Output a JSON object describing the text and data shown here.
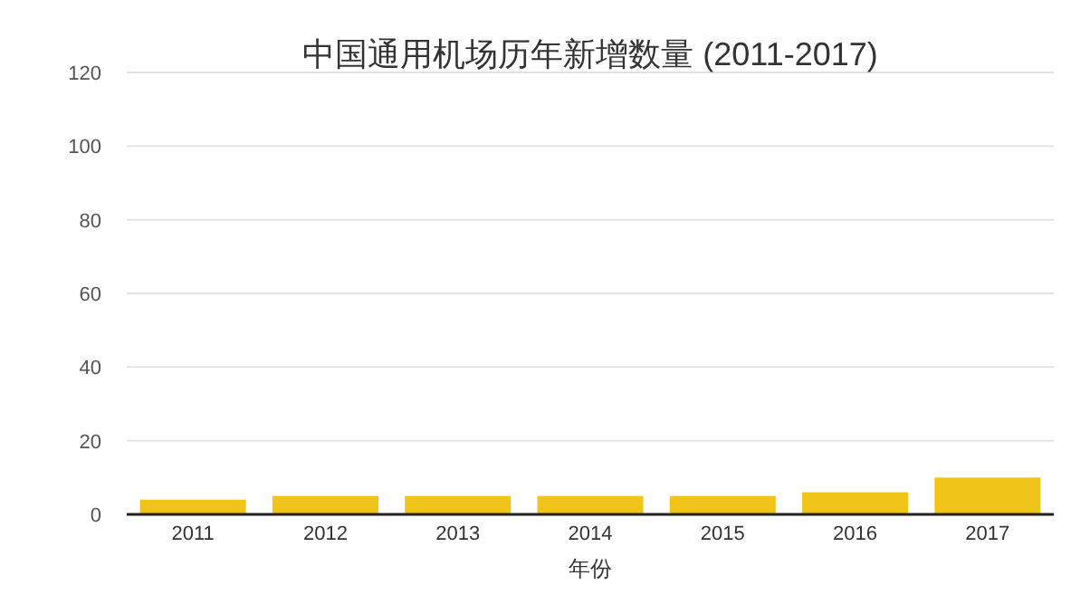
{
  "chart_data": {
    "type": "bar",
    "title": "中国通用机场历年新增数量 (2011-2017)",
    "xlabel": "年份",
    "categories": [
      "2011",
      "2012",
      "2013",
      "2014",
      "2015",
      "2016",
      "2017"
    ],
    "values": [
      4,
      5,
      5,
      5,
      5,
      6,
      10
    ],
    "color": "#f0c419",
    "ylim": [
      0,
      120
    ],
    "yticks": [
      0,
      20,
      40,
      60,
      80,
      100,
      120
    ],
    "grid": "y"
  }
}
